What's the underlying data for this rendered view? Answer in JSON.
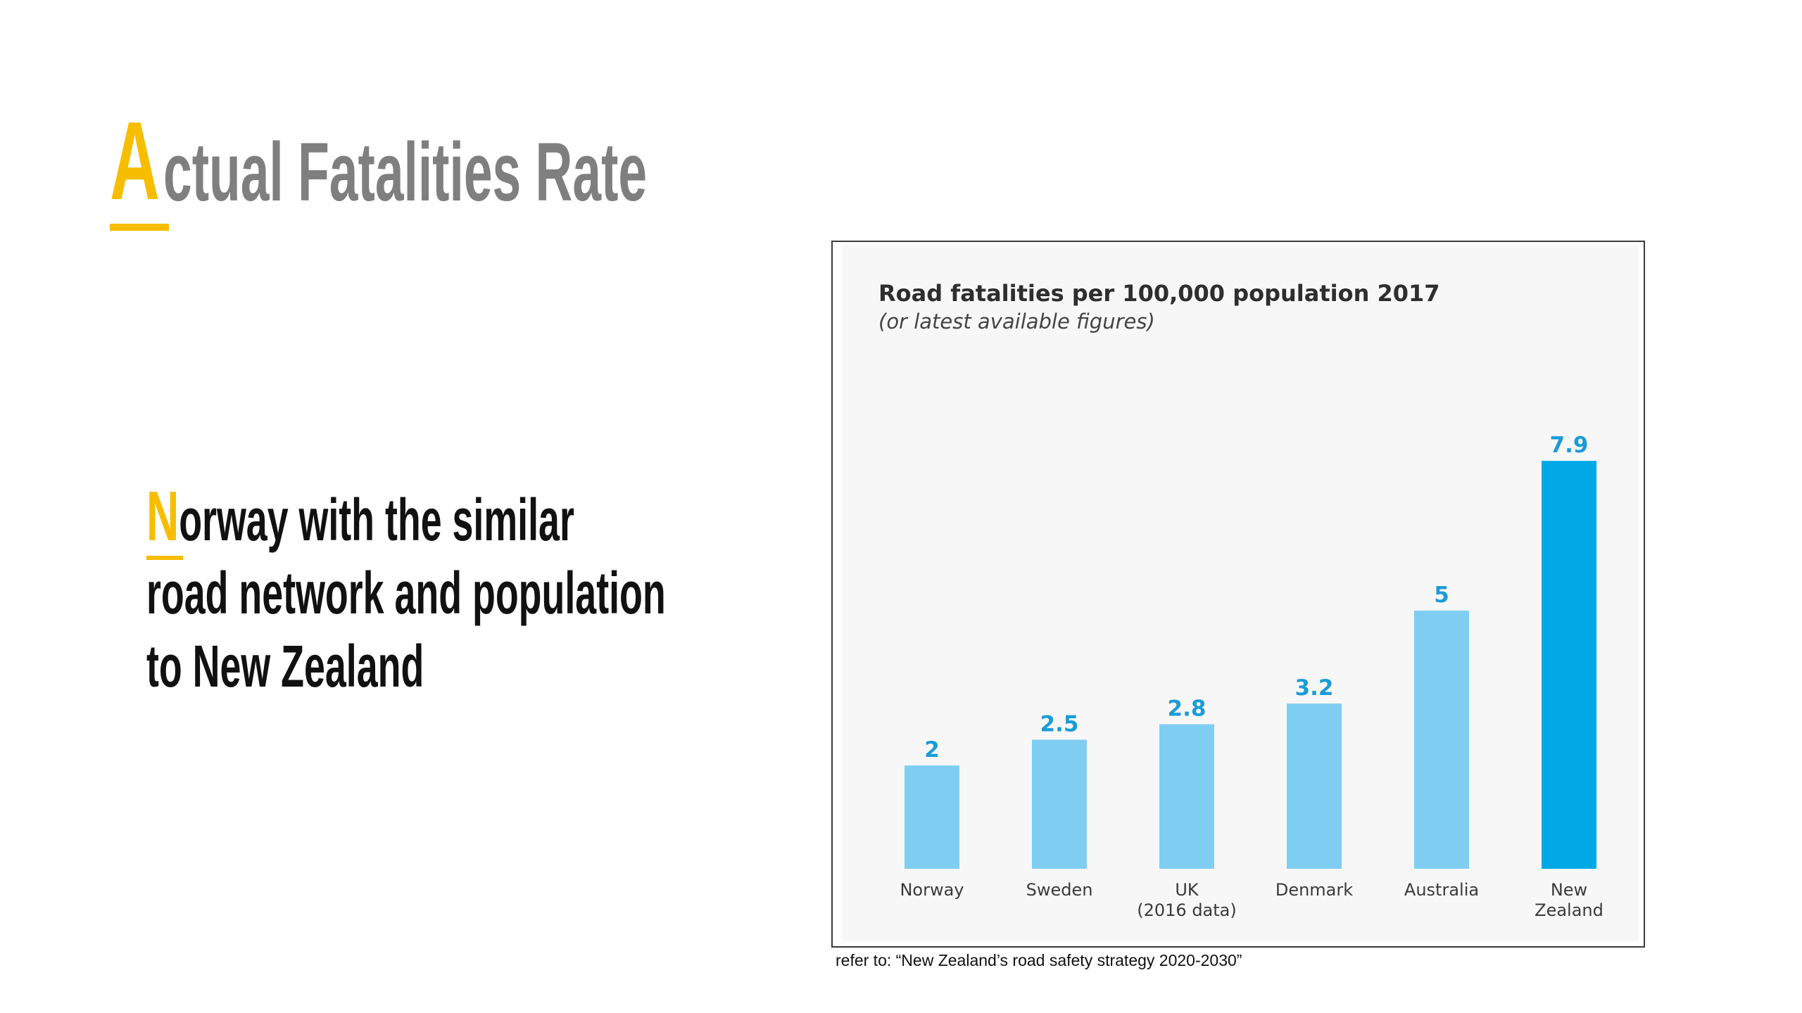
{
  "slide": {
    "title_initial": "A",
    "title_rest": "ctual Fatalities Rate",
    "body_initial": "N",
    "body_line1_rest": "orway with the similar",
    "body_line2": "road network and population",
    "body_line3": "to New Zealand",
    "caption": "refer to: “New Zealand’s road safety strategy 2020-2030”"
  },
  "colors": {
    "accent": "#f7bd00",
    "title_gray": "#7f7f7f",
    "bar_light": "#7fcef2",
    "bar_highlight": "#00a9e6",
    "value_label": "#1b9bd8",
    "chart_background": "#f7f7f7"
  },
  "chart_data": {
    "type": "bar",
    "title": "Road fatalities per 100,000 population 2017",
    "subtitle": "(or latest available figures)",
    "categories": [
      [
        "Norway"
      ],
      [
        "Sweden"
      ],
      [
        "UK",
        "(2016 data)"
      ],
      [
        "Denmark"
      ],
      [
        "Australia"
      ],
      [
        "New",
        "Zealand"
      ]
    ],
    "values": [
      2,
      2.5,
      2.8,
      3.2,
      5,
      7.9
    ],
    "value_labels": [
      "2",
      "2.5",
      "2.8",
      "3.2",
      "5",
      "7.9"
    ],
    "highlight": [
      false,
      false,
      false,
      false,
      false,
      true
    ],
    "xlabel": "",
    "ylabel": "",
    "ylim": [
      0,
      8
    ],
    "grid": false,
    "legend": "none"
  }
}
